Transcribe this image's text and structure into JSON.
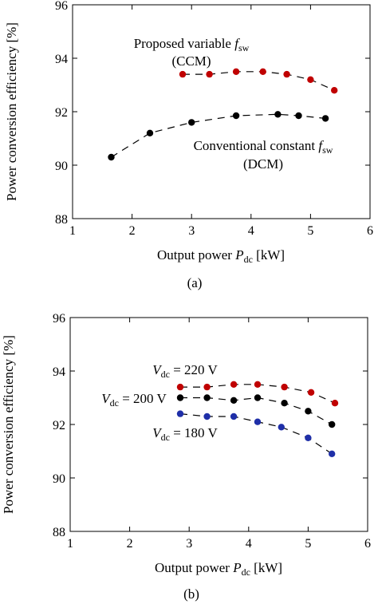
{
  "chart_data": [
    {
      "type": "scatter",
      "caption": "(a)",
      "xlabel": "Output power P_dc [kW]",
      "ylabel": "Power conversion efficiency [%]",
      "xlim": [
        1,
        6
      ],
      "ylim": [
        88,
        96
      ],
      "xticks": [
        1,
        2,
        3,
        4,
        5,
        6
      ],
      "yticks": [
        88,
        90,
        92,
        94,
        96
      ],
      "grid": false,
      "annotations": [
        {
          "text": "Proposed variable f_sw",
          "text2": "(CCM)",
          "color": "#c00000"
        },
        {
          "text": "Conventional constant f_sw",
          "text2": "(DCM)",
          "color": "#000000"
        }
      ],
      "series": [
        {
          "name": "Proposed variable f_sw (CCM)",
          "color": "#c00000",
          "x": [
            2.85,
            3.3,
            3.75,
            4.2,
            4.6,
            5.0,
            5.4
          ],
          "y": [
            93.4,
            93.4,
            93.5,
            93.5,
            93.4,
            93.2,
            92.8
          ]
        },
        {
          "name": "Conventional constant f_sw (DCM)",
          "color": "#000000",
          "x": [
            1.65,
            2.3,
            3.0,
            3.75,
            4.45,
            4.8,
            5.25
          ],
          "y": [
            90.3,
            91.2,
            91.6,
            91.85,
            91.9,
            91.85,
            91.75
          ]
        }
      ]
    },
    {
      "type": "scatter",
      "caption": "(b)",
      "xlabel": "Output power P_dc [kW]",
      "ylabel": "Power conversion efficiency [%]",
      "xlim": [
        1,
        6
      ],
      "ylim": [
        88,
        96
      ],
      "xticks": [
        1,
        2,
        3,
        4,
        5,
        6
      ],
      "yticks": [
        88,
        90,
        92,
        94,
        96
      ],
      "grid": false,
      "annotations": [
        {
          "text": "V_dc = 220 V",
          "color": "#c00000"
        },
        {
          "text": "V_dc = 200 V",
          "color": "#000000"
        },
        {
          "text": "V_dc = 180 V",
          "color": "#1f2fa8"
        }
      ],
      "series": [
        {
          "name": "V_dc = 220 V",
          "color": "#c00000",
          "x": [
            2.85,
            3.3,
            3.75,
            4.15,
            4.6,
            5.05,
            5.45
          ],
          "y": [
            93.4,
            93.4,
            93.5,
            93.5,
            93.4,
            93.2,
            92.8
          ]
        },
        {
          "name": "V_dc = 200 V",
          "color": "#000000",
          "x": [
            2.85,
            3.3,
            3.75,
            4.15,
            4.6,
            5.0,
            5.4
          ],
          "y": [
            93.0,
            93.0,
            92.9,
            93.0,
            92.8,
            92.5,
            92.0
          ]
        },
        {
          "name": "V_dc = 180 V",
          "color": "#1f2fa8",
          "x": [
            2.85,
            3.3,
            3.75,
            4.15,
            4.55,
            5.0,
            5.4
          ],
          "y": [
            92.4,
            92.3,
            92.3,
            92.1,
            91.9,
            91.5,
            90.9
          ]
        }
      ]
    }
  ]
}
